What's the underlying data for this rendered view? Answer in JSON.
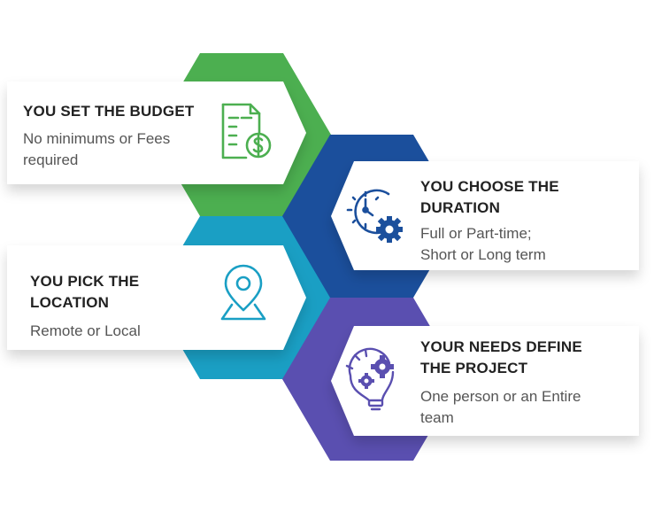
{
  "colors": {
    "budget": "#4caf50",
    "duration": "#1b4f9c",
    "location": "#1a9fc4",
    "project": "#5a4fb0",
    "card": "#ffffff",
    "title_text": "#222222",
    "desc_text": "#555555"
  },
  "cards": [
    {
      "id": "budget",
      "title": "YOU SET THE BUDGET",
      "description": "No minimums or Fees\nrequired",
      "icon": "budget-document-dollar-icon"
    },
    {
      "id": "duration",
      "title": "YOU CHOOSE THE\nDURATION",
      "description": "Full or Part-time;\nShort or Long term",
      "icon": "clock-gear-icon"
    },
    {
      "id": "location",
      "title": "YOU PICK THE\nLOCATION",
      "description": "Remote or Local",
      "icon": "location-pin-icon"
    },
    {
      "id": "project",
      "title": "YOUR NEEDS DEFINE\nTHE PROJECT",
      "description": "One person or an Entire\nteam",
      "icon": "lightbulb-gears-icon"
    }
  ]
}
